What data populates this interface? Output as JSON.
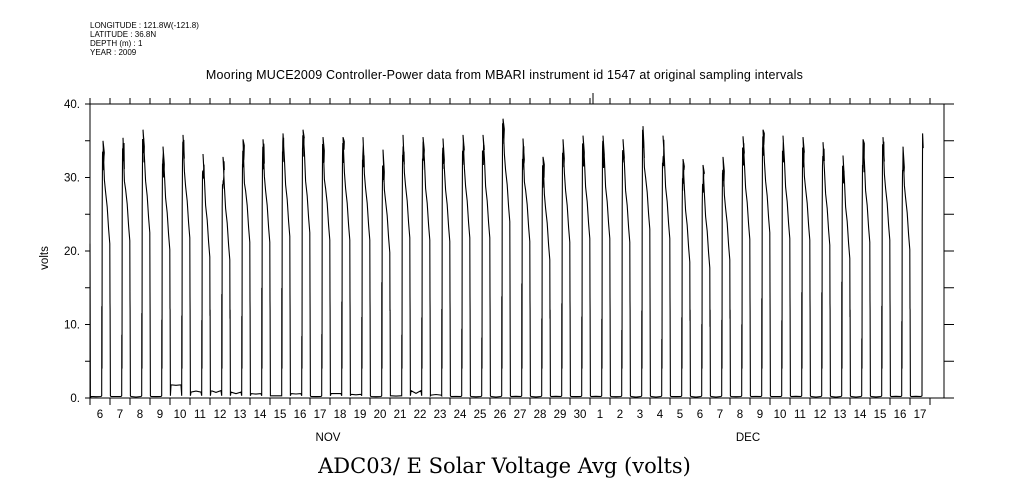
{
  "header": {
    "longitude": "LONGITUDE : 121.8W(-121.8)",
    "latitude": "LATITUDE : 36.8N",
    "depth": "DEPTH (m) : 1",
    "year": "YEAR : 2009"
  },
  "chart_data": {
    "type": "line",
    "title": "Mooring MUCE2009 Controller-Power data from MBARI instrument id 1547 at original sampling intervals",
    "footer": "ADC03/ E Solar Voltage Avg (volts)",
    "ylabel": "volts",
    "xlabel": "",
    "ylim": [
      0,
      40
    ],
    "yticks": [
      0,
      10,
      20,
      30,
      40
    ],
    "ytick_labels": [
      "0.",
      "10.",
      "20.",
      "30.",
      "40."
    ],
    "x_start": "2009-11-06",
    "xlim_days": [
      0,
      42.7
    ],
    "xtick_labels": [
      "6",
      "7",
      "8",
      "9",
      "10",
      "11",
      "12",
      "13",
      "14",
      "15",
      "16",
      "17",
      "18",
      "19",
      "20",
      "21",
      "22",
      "23",
      "24",
      "25",
      "26",
      "27",
      "28",
      "29",
      "30",
      "1",
      "2",
      "3",
      "4",
      "5",
      "6",
      "7",
      "8",
      "9",
      "10",
      "11",
      "12",
      "13",
      "14",
      "15",
      "16",
      "17"
    ],
    "month_labels": [
      {
        "label": "NOV",
        "day_index": 12
      },
      {
        "label": "DEC",
        "day_index": 33
      }
    ],
    "series": [
      {
        "name": "Solar Voltage Avg",
        "initial_value": 21,
        "daily_peak_volts": [
          35,
          35.4,
          36.5,
          34.2,
          35.8,
          33.2,
          32.8,
          35.2,
          35.2,
          36,
          36.5,
          35.5,
          35.5,
          35.5,
          33.8,
          35.8,
          35.5,
          35.3,
          35.8,
          35.8,
          38,
          35.3,
          32.8,
          35.2,
          35.7,
          35.7,
          35.2,
          37,
          35.7,
          32.5,
          31.7,
          32.8,
          35.6,
          36.5,
          35.7,
          35.5,
          34.8,
          33,
          35.2,
          35.5,
          34.2,
          36
        ],
        "night_baseline_volts": [
          0.2,
          0.2,
          0.2,
          0.2,
          1.8,
          0.8,
          1,
          0.8,
          0.6,
          0.3,
          0.6,
          0.2,
          0.6,
          0.5,
          0.2,
          0.3,
          1,
          0.4,
          0.2,
          0.2,
          0.2,
          0.2,
          0.2,
          0.2,
          0.2,
          0.2,
          0.2,
          0.2,
          0.2,
          0.2,
          0.2,
          0.2,
          0.2,
          0.2,
          0.2,
          0.2,
          0.2,
          0.2,
          0.2,
          0.2,
          0.2,
          0.2
        ],
        "end_value": 34
      }
    ]
  }
}
